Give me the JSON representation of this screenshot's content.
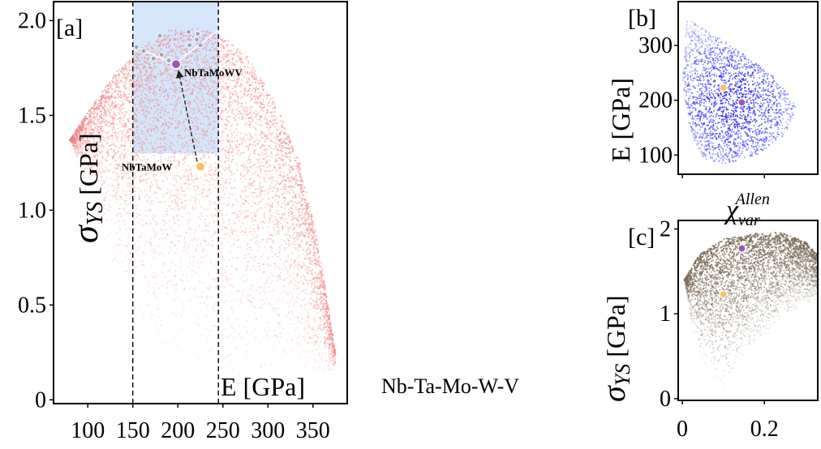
{
  "chart_data": [
    {
      "id": "a",
      "type": "scatter",
      "panel_tag": "[a]",
      "system_label": "Nb-Ta-Mo-W-V",
      "xlabel": "E [GPa]",
      "ylabel_symbol": "σ",
      "ylabel_sub": "YS",
      "ylabel_unit": "[GPa]",
      "xlim": [
        62,
        388
      ],
      "ylim": [
        -0.02,
        2.1
      ],
      "x_ticks": [
        100,
        150,
        200,
        250,
        300,
        350
      ],
      "y_ticks": [
        0,
        0.5,
        1.0,
        1.5,
        2.0
      ],
      "x_tick_labels": [
        "100",
        "150",
        "200",
        "250",
        "300",
        "350"
      ],
      "y_tick_labels": [
        "0",
        "0.5",
        "1.0",
        "1.5",
        "2.0"
      ],
      "cloud_color": "#f08080",
      "cloud_shape": {
        "top_curve": [
          [
            80,
            1.37
          ],
          [
            100,
            1.52
          ],
          [
            130,
            1.72
          ],
          [
            160,
            1.86
          ],
          [
            190,
            1.95
          ],
          [
            220,
            1.96
          ],
          [
            250,
            1.92
          ],
          [
            280,
            1.8
          ],
          [
            310,
            1.55
          ],
          [
            335,
            1.25
          ],
          [
            355,
            0.85
          ],
          [
            375,
            0.25
          ]
        ],
        "bottom_curve": [
          [
            80,
            1.37
          ],
          [
            100,
            1.05
          ],
          [
            130,
            0.62
          ],
          [
            160,
            0.32
          ],
          [
            200,
            0.15
          ],
          [
            250,
            0.08
          ],
          [
            300,
            0.05
          ],
          [
            340,
            0.05
          ],
          [
            375,
            0.15
          ]
        ]
      },
      "target_region": {
        "x": [
          150,
          245
        ],
        "y": [
          1.3,
          2.1
        ],
        "fill": "#b3d0f5"
      },
      "vlines": [
        150,
        245
      ],
      "pareto_points": [
        [
          154,
          1.86
        ],
        [
          162,
          1.84
        ],
        [
          173,
          1.8
        ],
        [
          180,
          1.92
        ],
        [
          182,
          1.82
        ],
        [
          190,
          1.79
        ],
        [
          196,
          1.77
        ],
        [
          212,
          1.94
        ],
        [
          213,
          1.87
        ],
        [
          222,
          1.93
        ],
        [
          221,
          1.9
        ],
        [
          225,
          1.87
        ]
      ],
      "pareto_line": [
        [
          154,
          1.86
        ],
        [
          196,
          1.77
        ],
        [
          245,
          1.95
        ]
      ],
      "points": [
        {
          "name": "NbTaMoWV",
          "x": 198,
          "y": 1.77,
          "color": "#9b59b6"
        },
        {
          "name": "NbTaMoW",
          "x": 225,
          "y": 1.23,
          "color": "#f5c26b"
        }
      ]
    },
    {
      "id": "b",
      "type": "scatter",
      "panel_tag": "[b]",
      "xlabel": "χ",
      "xlabel_sup": "Allen",
      "xlabel_sub": "var",
      "ylabel": "E [GPa]",
      "xlim": [
        -0.01,
        0.33
      ],
      "ylim": [
        65,
        380
      ],
      "y_ticks": [
        100,
        200,
        300
      ],
      "y_tick_labels": [
        "100",
        "200",
        "300"
      ],
      "x_ticks": [
        0,
        0.2
      ],
      "cloud_color": "#1a1aff",
      "cloud_shape": [
        [
          0.01,
          350
        ],
        [
          0.12,
          300
        ],
        [
          0.22,
          245
        ],
        [
          0.28,
          190
        ],
        [
          0.25,
          135
        ],
        [
          0.18,
          100
        ],
        [
          0.1,
          82
        ],
        [
          0.05,
          95
        ],
        [
          0.02,
          140
        ],
        [
          0.0,
          230
        ]
      ],
      "points": [
        {
          "name": "NbTaMoW",
          "x": 0.1,
          "y": 223,
          "color": "#f5c26b"
        },
        {
          "name": "NbTaMoWV",
          "x": 0.145,
          "y": 196,
          "color": "#9b59b6"
        }
      ]
    },
    {
      "id": "c",
      "type": "scatter",
      "panel_tag": "[c]",
      "ylabel_symbol": "σ",
      "ylabel_sub": "YS",
      "ylabel_unit": "[GPa]",
      "xlim": [
        -0.01,
        0.33
      ],
      "ylim": [
        -0.02,
        2.1
      ],
      "y_ticks": [
        0,
        1,
        2
      ],
      "y_tick_labels": [
        "0",
        "1",
        "2"
      ],
      "x_ticks": [
        0,
        0.2
      ],
      "x_tick_labels": [
        "0",
        "0.2"
      ],
      "cloud_color": "#7a6a55",
      "cloud_shape": {
        "top_curve": [
          [
            0.005,
            1.4
          ],
          [
            0.04,
            1.7
          ],
          [
            0.1,
            1.88
          ],
          [
            0.18,
            1.95
          ],
          [
            0.24,
            1.96
          ],
          [
            0.3,
            1.85
          ],
          [
            0.33,
            1.7
          ]
        ],
        "bottom_curve": [
          [
            0.005,
            1.4
          ],
          [
            0.02,
            0.9
          ],
          [
            0.05,
            0.4
          ],
          [
            0.1,
            0.12
          ],
          [
            0.12,
            0.3
          ],
          [
            0.2,
            0.7
          ],
          [
            0.28,
            1.05
          ],
          [
            0.33,
            1.15
          ]
        ]
      },
      "points": [
        {
          "name": "NbTaMoW",
          "x": 0.1,
          "y": 1.23,
          "color": "#f5c26b"
        },
        {
          "name": "NbTaMoWV",
          "x": 0.145,
          "y": 1.77,
          "color": "#9b59b6"
        }
      ]
    }
  ]
}
